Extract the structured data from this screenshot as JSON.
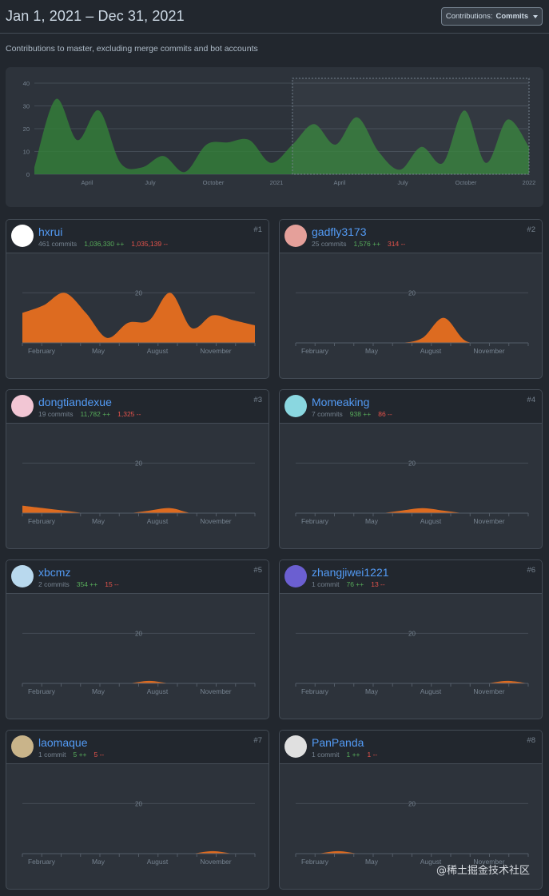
{
  "header": {
    "date_range": "Jan 1, 2021 – Dec 31, 2021",
    "button_prefix": "Contributions:",
    "button_value": "Commits"
  },
  "subtitle": "Contributions to master, excluding merge commits and bot accounts",
  "overview": {
    "y_ticks": [
      "40",
      "30",
      "20",
      "10",
      "0"
    ],
    "y_values": [
      40,
      30,
      20,
      10,
      0
    ],
    "x_labels": [
      "April",
      "July",
      "October",
      "2021",
      "April",
      "July",
      "October",
      "2022"
    ],
    "color": "#347d39",
    "selection_range": [
      "2021-01-01",
      "2022-01-01"
    ],
    "chart_data": {
      "type": "area",
      "x": [
        "2020-01",
        "2020-02",
        "2020-03",
        "2020-04",
        "2020-05",
        "2020-06",
        "2020-07",
        "2020-08",
        "2020-09",
        "2020-10",
        "2020-11",
        "2020-12",
        "2021-01",
        "2021-02",
        "2021-03",
        "2021-04",
        "2021-05",
        "2021-06",
        "2021-07",
        "2021-08",
        "2021-09",
        "2021-10",
        "2021-11",
        "2021-12"
      ],
      "values": [
        3,
        33,
        15,
        28,
        5,
        3,
        8,
        1,
        13,
        14,
        15,
        5,
        13,
        22,
        13,
        25,
        10,
        2,
        12,
        5,
        28,
        5,
        24,
        12
      ],
      "ylim": [
        0,
        40
      ]
    }
  },
  "month_labels": [
    "February",
    "May",
    "August",
    "November"
  ],
  "grid_value": "20",
  "series_color": "#dd6b20",
  "contributors": [
    {
      "name": "hxrui",
      "rank": "#1",
      "commits": "461 commits",
      "additions": "1,036,330 ++",
      "deletions": "1,035,139 --",
      "avatar": "#ffffff",
      "chart_data": {
        "type": "area",
        "ylim": [
          0,
          30
        ],
        "x": [
          "Jan",
          "Feb",
          "Mar",
          "Apr",
          "May",
          "Jun",
          "Jul",
          "Aug",
          "Sep",
          "Oct",
          "Nov",
          "Dec"
        ],
        "values": [
          12,
          15,
          20,
          12,
          2,
          8,
          9,
          20,
          6,
          11,
          9,
          7
        ]
      }
    },
    {
      "name": "gadfly3173",
      "rank": "#2",
      "commits": "25 commits",
      "additions": "1,576 ++",
      "deletions": "314 --",
      "avatar": "#e5a09a",
      "chart_data": {
        "type": "area",
        "ylim": [
          0,
          30
        ],
        "x": [
          "Jan",
          "Feb",
          "Mar",
          "Apr",
          "May",
          "Jun",
          "Jul",
          "Aug",
          "Sep",
          "Oct",
          "Nov",
          "Dec"
        ],
        "values": [
          0,
          0,
          0,
          0,
          0,
          0,
          2,
          10,
          1,
          0,
          0,
          0
        ]
      }
    },
    {
      "name": "dongtiandexue",
      "rank": "#3",
      "commits": "19 commits",
      "additions": "11,782 ++",
      "deletions": "1,325 --",
      "avatar": "#f2c6d4",
      "chart_data": {
        "type": "area",
        "ylim": [
          0,
          30
        ],
        "x": [
          "Jan",
          "Feb",
          "Mar",
          "Apr",
          "May",
          "Jun",
          "Jul",
          "Aug",
          "Sep",
          "Oct",
          "Nov",
          "Dec"
        ],
        "values": [
          3,
          2,
          1,
          0,
          0,
          0,
          1,
          2,
          0,
          0,
          0,
          0
        ]
      }
    },
    {
      "name": "Momeaking",
      "rank": "#4",
      "commits": "7 commits",
      "additions": "938 ++",
      "deletions": "86 --",
      "avatar": "#8ad7e0",
      "chart_data": {
        "type": "area",
        "ylim": [
          0,
          30
        ],
        "x": [
          "Jan",
          "Feb",
          "Mar",
          "Apr",
          "May",
          "Jun",
          "Jul",
          "Aug",
          "Sep",
          "Oct",
          "Nov",
          "Dec"
        ],
        "values": [
          0,
          0,
          0,
          0,
          0,
          1,
          2,
          1,
          0,
          0,
          0,
          0
        ]
      }
    },
    {
      "name": "xbcmz",
      "rank": "#5",
      "commits": "2 commits",
      "additions": "354 ++",
      "deletions": "15 --",
      "avatar": "#b9d9ee",
      "chart_data": {
        "type": "area",
        "ylim": [
          0,
          30
        ],
        "x": [
          "Jan",
          "Feb",
          "Mar",
          "Apr",
          "May",
          "Jun",
          "Jul",
          "Aug",
          "Sep",
          "Oct",
          "Nov",
          "Dec"
        ],
        "values": [
          0,
          0,
          0,
          0,
          0,
          0,
          1,
          0,
          0,
          0,
          0,
          0
        ]
      }
    },
    {
      "name": "zhangjiwei1221",
      "rank": "#6",
      "commits": "1 commit",
      "additions": "76 ++",
      "deletions": "13 --",
      "avatar": "#6b5fd1",
      "chart_data": {
        "type": "area",
        "ylim": [
          0,
          30
        ],
        "x": [
          "Jan",
          "Feb",
          "Mar",
          "Apr",
          "May",
          "Jun",
          "Jul",
          "Aug",
          "Sep",
          "Oct",
          "Nov",
          "Dec"
        ],
        "values": [
          0,
          0,
          0,
          0,
          0,
          0,
          0,
          0,
          0,
          0,
          1,
          0
        ]
      }
    },
    {
      "name": "laomaque",
      "rank": "#7",
      "commits": "1 commit",
      "additions": "5 ++",
      "deletions": "5 --",
      "avatar": "#c9b48a",
      "chart_data": {
        "type": "area",
        "ylim": [
          0,
          30
        ],
        "x": [
          "Jan",
          "Feb",
          "Mar",
          "Apr",
          "May",
          "Jun",
          "Jul",
          "Aug",
          "Sep",
          "Oct",
          "Nov",
          "Dec"
        ],
        "values": [
          0,
          0,
          0,
          0,
          0,
          0,
          0,
          0,
          0,
          1,
          0,
          0
        ]
      }
    },
    {
      "name": "PanPanda",
      "rank": "#8",
      "commits": "1 commit",
      "additions": "1 ++",
      "deletions": "1 --",
      "avatar": "#e0e0e0",
      "chart_data": {
        "type": "area",
        "ylim": [
          0,
          30
        ],
        "x": [
          "Jan",
          "Feb",
          "Mar",
          "Apr",
          "May",
          "Jun",
          "Jul",
          "Aug",
          "Sep",
          "Oct",
          "Nov",
          "Dec"
        ],
        "values": [
          0,
          0,
          1,
          0,
          0,
          0,
          0,
          0,
          0,
          0,
          0,
          0
        ]
      }
    }
  ],
  "watermark": "@稀土掘金技术社区"
}
